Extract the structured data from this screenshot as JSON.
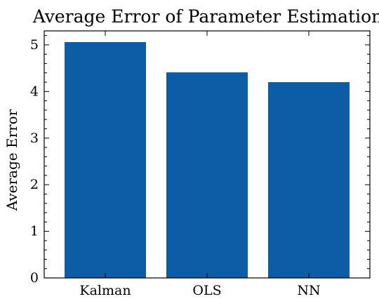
{
  "chart_data": {
    "type": "bar",
    "title": "Average Error of Parameter Estimation",
    "xlabel": "",
    "ylabel": "Average Error",
    "categories": [
      "Kalman",
      "OLS",
      "NN"
    ],
    "values": [
      5.06,
      4.41,
      4.2
    ],
    "ylim": [
      0,
      5.3
    ],
    "yticks": [
      0,
      1,
      2,
      3,
      4,
      5
    ],
    "grid": false,
    "bar_color": "#0C5DA5"
  }
}
